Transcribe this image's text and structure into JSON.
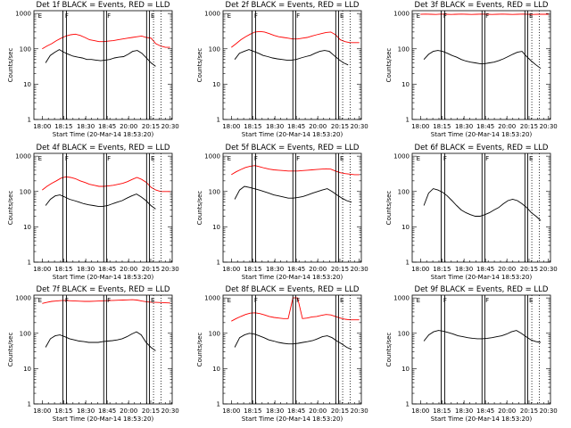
{
  "chart_data": [
    {
      "type": "line",
      "title": "Det 1f BLACK = Events, RED = LLD",
      "xlabel": "Start Time (20-Mar-14 18:53:20)",
      "ylabel": "Counts/sec",
      "log_y": true,
      "ylim": [
        1,
        1200
      ],
      "series": [
        {
          "name": "Events",
          "color": "#000000",
          "x0": "18:04",
          "x1": "20:13",
          "values": [
            40,
            65,
            80,
            95,
            80,
            70,
            62,
            58,
            55,
            50,
            50,
            48,
            46,
            48,
            50,
            55,
            58,
            60,
            70,
            85,
            90,
            75,
            55,
            40,
            32
          ]
        },
        {
          "name": "LLD",
          "color": "#ff0000",
          "x0": "18:00",
          "x1": "20:30",
          "values": [
            100,
            120,
            140,
            170,
            200,
            230,
            250,
            260,
            240,
            210,
            180,
            170,
            160,
            160,
            165,
            170,
            180,
            190,
            200,
            210,
            220,
            230,
            210,
            200,
            140,
            120,
            110,
            110
          ]
        }
      ]
    },
    {
      "type": "line",
      "title": "Det 2f BLACK = Events, RED = LLD",
      "xlabel": "Start Time (20-Mar-14 18:53:20)",
      "ylabel": "Counts/sec",
      "log_y": true,
      "ylim": [
        1,
        1200
      ],
      "series": [
        {
          "name": "Events",
          "color": "#000000",
          "x0": "18:04",
          "x1": "20:17",
          "values": [
            50,
            75,
            85,
            95,
            85,
            75,
            65,
            60,
            55,
            52,
            50,
            48,
            48,
            50,
            55,
            60,
            65,
            75,
            85,
            90,
            85,
            65,
            50,
            40,
            35
          ]
        },
        {
          "name": "LLD",
          "color": "#ff0000",
          "x0": "18:00",
          "x1": "20:30",
          "values": [
            110,
            140,
            180,
            220,
            260,
            300,
            310,
            300,
            270,
            240,
            220,
            210,
            200,
            190,
            190,
            200,
            210,
            230,
            250,
            270,
            290,
            300,
            250,
            180,
            160,
            150,
            150,
            150
          ]
        }
      ]
    },
    {
      "type": "line",
      "title": "Det 3f BLACK = Events, RED = LLD",
      "xlabel": "Start Time (20-Mar-14 18:53:20)",
      "ylabel": "Counts/sec",
      "log_y": true,
      "ylim": [
        1,
        1200
      ],
      "series": [
        {
          "name": "Events",
          "color": "#000000",
          "x0": "18:04",
          "x1": "20:21",
          "values": [
            50,
            70,
            85,
            90,
            85,
            75,
            65,
            58,
            50,
            45,
            42,
            40,
            38,
            38,
            40,
            42,
            46,
            52,
            60,
            70,
            80,
            85,
            60,
            45,
            35,
            28
          ]
        },
        {
          "name": "LLD",
          "color": "#ff0000",
          "x0": "18:00",
          "x1": "20:30",
          "values": [
            950,
            960,
            950,
            940,
            960,
            950,
            940,
            950,
            960,
            950,
            940,
            950,
            960,
            950,
            940,
            950,
            960,
            950,
            940,
            950,
            960,
            950,
            940,
            950,
            950,
            950
          ]
        }
      ]
    },
    {
      "type": "line",
      "title": "Det 4f BLACK = Events, RED = LLD",
      "xlabel": "Start Time (20-Mar-14 18:53:20)",
      "ylabel": "Counts/sec",
      "log_y": true,
      "ylim": [
        1,
        1200
      ],
      "series": [
        {
          "name": "Events",
          "color": "#000000",
          "x0": "18:04",
          "x1": "20:13",
          "values": [
            40,
            60,
            75,
            80,
            70,
            60,
            55,
            50,
            45,
            42,
            40,
            38,
            38,
            40,
            45,
            50,
            55,
            65,
            75,
            85,
            70,
            55,
            40,
            32
          ]
        },
        {
          "name": "LLD",
          "color": "#ff0000",
          "x0": "18:00",
          "x1": "20:30",
          "values": [
            110,
            140,
            170,
            200,
            240,
            260,
            250,
            230,
            200,
            180,
            160,
            150,
            140,
            140,
            145,
            150,
            160,
            170,
            190,
            220,
            250,
            220,
            180,
            130,
            110,
            100,
            100,
            100
          ]
        }
      ]
    },
    {
      "type": "line",
      "title": "Det 5f BLACK = Events, RED = LLD",
      "xlabel": "Start Time (20-Mar-14 18:53:20)",
      "ylabel": "Counts/sec",
      "log_y": true,
      "ylim": [
        1,
        1200
      ],
      "series": [
        {
          "name": "Events",
          "color": "#000000",
          "x0": "18:04",
          "x1": "20:21",
          "values": [
            60,
            110,
            140,
            130,
            120,
            110,
            100,
            90,
            80,
            75,
            70,
            65,
            65,
            68,
            72,
            80,
            90,
            100,
            110,
            120,
            100,
            80,
            65,
            55,
            50
          ]
        },
        {
          "name": "LLD",
          "color": "#ff0000",
          "x0": "18:00",
          "x1": "20:30",
          "values": [
            300,
            360,
            420,
            480,
            520,
            540,
            500,
            460,
            430,
            410,
            400,
            390,
            380,
            380,
            380,
            390,
            400,
            410,
            420,
            430,
            440,
            430,
            380,
            340,
            320,
            310,
            300,
            300
          ]
        }
      ]
    },
    {
      "type": "line",
      "title": "Det 6f BLACK = Events, RED = LLD",
      "xlabel": "Start Time (20-Mar-14 18:53:20)",
      "ylabel": "Counts/sec",
      "log_y": true,
      "ylim": [
        1,
        1200
      ],
      "series": [
        {
          "name": "Events",
          "color": "#000000",
          "x0": "18:04",
          "x1": "20:21",
          "values": [
            40,
            90,
            120,
            110,
            95,
            75,
            55,
            40,
            30,
            25,
            22,
            20,
            20,
            22,
            25,
            30,
            35,
            45,
            55,
            60,
            55,
            45,
            35,
            25,
            20,
            15
          ]
        }
      ]
    },
    {
      "type": "line",
      "title": "Det 7f BLACK = Events, RED = LLD",
      "xlabel": "Start Time (20-Mar-14 18:53:20)",
      "ylabel": "Counts/sec",
      "log_y": true,
      "ylim": [
        1,
        1200
      ],
      "series": [
        {
          "name": "Events",
          "color": "#000000",
          "x0": "18:04",
          "x1": "20:13",
          "values": [
            40,
            70,
            85,
            90,
            80,
            70,
            65,
            60,
            58,
            55,
            55,
            55,
            58,
            60,
            62,
            65,
            70,
            80,
            95,
            110,
            90,
            55,
            40,
            32
          ]
        },
        {
          "name": "LLD",
          "color": "#ff0000",
          "x0": "18:00",
          "x1": "20:30",
          "values": [
            700,
            750,
            800,
            820,
            840,
            850,
            830,
            820,
            810,
            800,
            800,
            810,
            820,
            830,
            840,
            850,
            860,
            870,
            880,
            890,
            870,
            820,
            780,
            760,
            750,
            740,
            730,
            720
          ]
        }
      ]
    },
    {
      "type": "line",
      "title": "Det 8f BLACK = Events, RED = LLD",
      "xlabel": "Start Time (20-Mar-14 18:53:20)",
      "ylabel": "Counts/sec",
      "log_y": true,
      "ylim": [
        1,
        1200
      ],
      "series": [
        {
          "name": "Events",
          "color": "#000000",
          "x0": "18:04",
          "x1": "20:21",
          "values": [
            40,
            75,
            90,
            100,
            95,
            85,
            75,
            65,
            60,
            55,
            52,
            50,
            50,
            52,
            55,
            58,
            62,
            70,
            80,
            85,
            75,
            60,
            50,
            40,
            35
          ]
        },
        {
          "name": "LLD",
          "color": "#ff0000",
          "x0": "18:00",
          "x1": "20:30",
          "values": [
            220,
            260,
            300,
            340,
            370,
            380,
            360,
            330,
            300,
            280,
            270,
            260,
            260,
            1000,
            1000,
            260,
            270,
            290,
            300,
            320,
            340,
            330,
            300,
            270,
            250,
            240,
            240,
            240
          ]
        }
      ]
    },
    {
      "type": "line",
      "title": "Det 9f BLACK = Events, RED = LLD",
      "xlabel": "Start Time (20-Mar-14 18:53:20)",
      "ylabel": "Counts/sec",
      "log_y": true,
      "ylim": [
        1,
        1200
      ],
      "series": [
        {
          "name": "Events",
          "color": "#000000",
          "x0": "18:04",
          "x1": "20:21",
          "values": [
            60,
            90,
            110,
            120,
            115,
            105,
            95,
            85,
            80,
            75,
            72,
            70,
            70,
            72,
            75,
            80,
            85,
            95,
            110,
            120,
            100,
            80,
            65,
            58,
            55
          ]
        }
      ]
    }
  ],
  "axis": {
    "x_ticks": [
      "18:00",
      "18:15",
      "18:30",
      "18:45",
      "20:00",
      "20:15",
      "20:30"
    ],
    "y_ticks": [
      "1",
      "10",
      "100",
      "1000"
    ]
  },
  "markers": {
    "letters": [
      "E",
      "F",
      "F",
      "E"
    ]
  }
}
